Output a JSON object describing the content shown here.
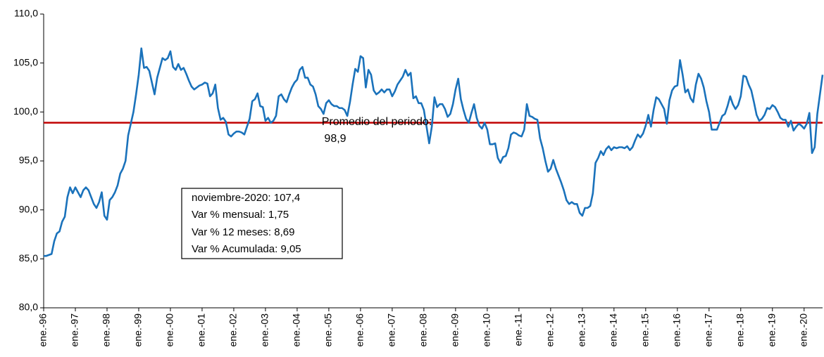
{
  "chart_data": {
    "type": "line",
    "categories": [
      "ene.-96",
      null,
      null,
      null,
      null,
      null,
      null,
      null,
      null,
      null,
      null,
      null,
      "ene.-97",
      null,
      null,
      null,
      null,
      null,
      null,
      null,
      null,
      null,
      null,
      null,
      "ene.-98",
      null,
      null,
      null,
      null,
      null,
      null,
      null,
      null,
      null,
      null,
      null,
      "ene.-99",
      null,
      null,
      null,
      null,
      null,
      null,
      null,
      null,
      null,
      null,
      null,
      "ene.-00",
      null,
      null,
      null,
      null,
      null,
      null,
      null,
      null,
      null,
      null,
      null,
      "ene.-01",
      null,
      null,
      null,
      null,
      null,
      null,
      null,
      null,
      null,
      null,
      null,
      "ene.-02",
      null,
      null,
      null,
      null,
      null,
      null,
      null,
      null,
      null,
      null,
      null,
      "ene.-03",
      null,
      null,
      null,
      null,
      null,
      null,
      null,
      null,
      null,
      null,
      null,
      "ene.-04",
      null,
      null,
      null,
      null,
      null,
      null,
      null,
      null,
      null,
      null,
      null,
      "ene.-05",
      null,
      null,
      null,
      null,
      null,
      null,
      null,
      null,
      null,
      null,
      null,
      "ene.-06",
      null,
      null,
      null,
      null,
      null,
      null,
      null,
      null,
      null,
      null,
      null,
      "ene.-07",
      null,
      null,
      null,
      null,
      null,
      null,
      null,
      null,
      null,
      null,
      null,
      "ene.-08",
      null,
      null,
      null,
      null,
      null,
      null,
      null,
      null,
      null,
      null,
      null,
      "ene.-09",
      null,
      null,
      null,
      null,
      null,
      null,
      null,
      null,
      null,
      null,
      null,
      "ene.-10",
      null,
      null,
      null,
      null,
      null,
      null,
      null,
      null,
      null,
      null,
      null,
      "ene.-11",
      null,
      null,
      null,
      null,
      null,
      null,
      null,
      null,
      null,
      null,
      null,
      "ene.-12",
      null,
      null,
      null,
      null,
      null,
      null,
      null,
      null,
      null,
      null,
      null,
      "ene.-13",
      null,
      null,
      null,
      null,
      null,
      null,
      null,
      null,
      null,
      null,
      null,
      "ene.-14",
      null,
      null,
      null,
      null,
      null,
      null,
      null,
      null,
      null,
      null,
      null,
      "ene.-15",
      null,
      null,
      null,
      null,
      null,
      null,
      null,
      null,
      null,
      null,
      null,
      "ene.-16",
      null,
      null,
      null,
      null,
      null,
      null,
      null,
      null,
      null,
      null,
      null,
      "ene.-17",
      null,
      null,
      null,
      null,
      null,
      null,
      null,
      null,
      null,
      null,
      null,
      "ene.-18",
      null,
      null,
      null,
      null,
      null,
      null,
      null,
      null,
      null,
      null,
      null,
      "ene.-19",
      null,
      null,
      null,
      null,
      null,
      null,
      null,
      null,
      null,
      null,
      null,
      "ene.-20",
      null,
      null,
      null,
      null,
      null,
      null,
      null
    ],
    "series": [
      {
        "color": "#1a72bb",
        "values": [
          85.3,
          85.3,
          85.4,
          85.5,
          86.8,
          87.6,
          87.8,
          88.8,
          89.3,
          91.3,
          92.3,
          91.7,
          92.3,
          91.8,
          91.3,
          92.0,
          92.3,
          92.0,
          91.3,
          90.6,
          90.2,
          90.8,
          91.8,
          89.4,
          89.0,
          91.0,
          91.3,
          91.8,
          92.5,
          93.7,
          94.2,
          95.0,
          97.6,
          98.8,
          100.0,
          101.8,
          103.8,
          106.5,
          104.5,
          104.6,
          104.2,
          103.0,
          101.8,
          103.5,
          104.5,
          105.5,
          105.3,
          105.5,
          106.2,
          104.6,
          104.3,
          104.9,
          104.3,
          104.5,
          103.9,
          103.2,
          102.6,
          102.3,
          102.5,
          102.7,
          102.8,
          103.0,
          102.9,
          101.6,
          101.9,
          102.8,
          100.4,
          99.2,
          99.4,
          99.0,
          97.7,
          97.5,
          97.8,
          98.0,
          98.0,
          97.9,
          97.7,
          98.5,
          99.3,
          101.1,
          101.3,
          101.9,
          100.6,
          100.5,
          99.1,
          99.4,
          98.9,
          99.1,
          99.6,
          101.6,
          101.8,
          101.3,
          101.0,
          101.8,
          102.5,
          103.0,
          103.3,
          104.3,
          104.6,
          103.5,
          103.5,
          102.8,
          102.6,
          101.8,
          100.6,
          100.3,
          99.8,
          100.9,
          101.2,
          100.8,
          100.6,
          100.6,
          100.4,
          100.4,
          100.2,
          99.6,
          101.0,
          102.8,
          104.4,
          104.1,
          105.7,
          105.5,
          102.5,
          104.3,
          103.8,
          102.2,
          101.8,
          102.0,
          102.3,
          102.0,
          102.3,
          102.3,
          101.6,
          102.1,
          102.8,
          103.2,
          103.6,
          104.3,
          103.7,
          104.0,
          101.4,
          101.6,
          100.9,
          100.9,
          100.2,
          98.5,
          96.8,
          98.5,
          101.5,
          100.5,
          100.8,
          100.8,
          100.3,
          99.5,
          99.8,
          100.8,
          102.3,
          103.4,
          101.3,
          100.2,
          99.3,
          98.9,
          99.9,
          100.8,
          99.4,
          98.6,
          98.3,
          98.9,
          98.2,
          96.7,
          96.7,
          96.8,
          95.3,
          94.8,
          95.4,
          95.5,
          96.3,
          97.7,
          97.9,
          97.8,
          97.6,
          97.5,
          98.2,
          100.8,
          99.6,
          99.5,
          99.3,
          99.2,
          97.3,
          96.3,
          95.0,
          93.9,
          94.2,
          95.1,
          94.2,
          93.5,
          92.8,
          92.0,
          91.0,
          90.6,
          90.8,
          90.6,
          90.6,
          89.7,
          89.4,
          90.2,
          90.2,
          90.4,
          91.7,
          94.8,
          95.3,
          96.0,
          95.6,
          96.2,
          96.5,
          96.1,
          96.4,
          96.3,
          96.4,
          96.4,
          96.3,
          96.5,
          96.1,
          96.4,
          97.1,
          97.7,
          97.4,
          97.8,
          98.6,
          99.7,
          98.5,
          100.2,
          101.5,
          101.3,
          100.8,
          100.3,
          98.8,
          101.2,
          102.2,
          102.6,
          102.7,
          105.3,
          103.8,
          102.0,
          102.3,
          101.4,
          101.0,
          102.8,
          103.9,
          103.4,
          102.5,
          101.1,
          100.0,
          98.2,
          98.2,
          98.2,
          98.9,
          99.6,
          99.8,
          100.6,
          101.6,
          100.8,
          100.3,
          100.7,
          101.6,
          103.7,
          103.6,
          102.8,
          102.2,
          101.0,
          99.7,
          99.1,
          99.3,
          99.7,
          100.4,
          100.3,
          100.7,
          100.5,
          100.0,
          99.4,
          99.2,
          99.2,
          98.5,
          99.1,
          98.1,
          98.5,
          98.8,
          98.6,
          98.3,
          98.8,
          99.9,
          95.8,
          96.4,
          99.8,
          101.8,
          103.8
        ]
      }
    ],
    "ylim": [
      80,
      110
    ],
    "yticks": [
      {
        "value": 80,
        "label": "80,0"
      },
      {
        "value": 85,
        "label": "85,0"
      },
      {
        "value": 90,
        "label": "90,0"
      },
      {
        "value": 95,
        "label": "95,0"
      },
      {
        "value": 100,
        "label": "100,0"
      },
      {
        "value": 105,
        "label": "105,0"
      },
      {
        "value": 110,
        "label": "110,0"
      }
    ],
    "reference_line": {
      "value": 98.9,
      "color": "#c00000",
      "label": "Promedio del periodo:",
      "value_label": "98,9"
    },
    "annotation_box": [
      "noviembre-2020: 107,4",
      "Var % mensual: 1,75",
      "Var % 12 meses: 8,69",
      "Var % Acumulada: 9,05"
    ]
  }
}
